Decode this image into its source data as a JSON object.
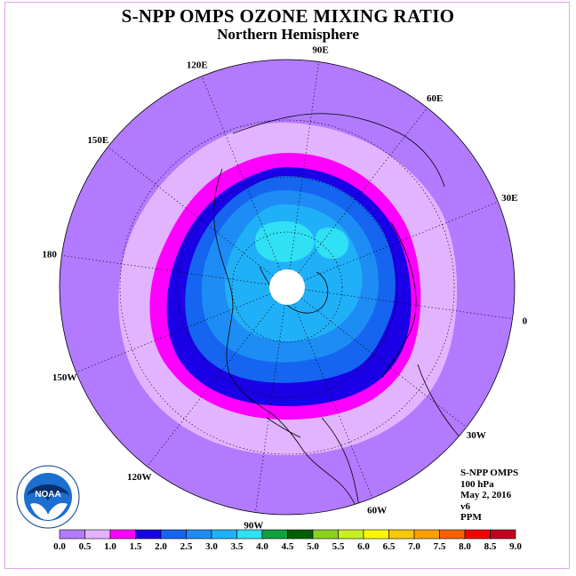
{
  "title": "S-NPP OMPS OZONE MIXING RATIO",
  "subtitle": "Northern Hemisphere",
  "longitude_labels": [
    "90E",
    "60E",
    "30E",
    "0",
    "30W",
    "60W",
    "90W",
    "120W",
    "150W",
    "180",
    "150E",
    "120E"
  ],
  "info": {
    "instrument": "S-NPP OMPS",
    "level": "100 hPa",
    "date": "May 2, 2016",
    "version": "v6",
    "units": "PPM"
  },
  "colorbar": {
    "ticks": [
      "0.0",
      "0.5",
      "1.0",
      "1.5",
      "2.0",
      "2.5",
      "3.0",
      "3.5",
      "4.0",
      "4.5",
      "5.0",
      "5.5",
      "6.0",
      "6.5",
      "7.0",
      "7.5",
      "8.0",
      "8.5",
      "9.0"
    ],
    "colors": [
      "#b27aff",
      "#e2b4ff",
      "#ff00ff",
      "#1a00e6",
      "#1565f0",
      "#1e8cf5",
      "#20b0f8",
      "#30e0f5",
      "#10a040",
      "#006000",
      "#8cd020",
      "#c8f020",
      "#f8f800",
      "#f8c800",
      "#f8a000",
      "#f86000",
      "#f80000",
      "#c00020"
    ]
  },
  "contour_colors": {
    "band_0_0.5": "#b27aff",
    "band_0.5_1.0": "#e2b4ff",
    "band_1.0_1.5": "#ff00ff",
    "band_1.5_2.0": "#1a00e6",
    "band_2.0_2.5": "#1565f0",
    "band_2.5_3.0": "#1e8cf5",
    "band_3.0_3.5": "#20b0f8",
    "band_3.5_4.0": "#30e0f5",
    "no_data": "#ffffff"
  },
  "logo": {
    "name": "NOAA emblem",
    "text": "NOAA"
  }
}
